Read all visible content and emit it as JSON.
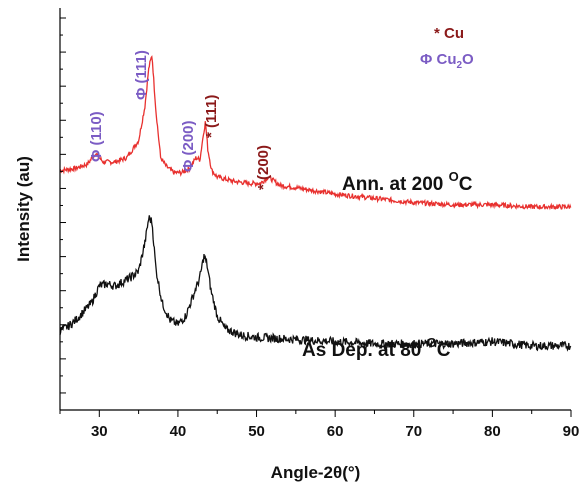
{
  "chart_data": {
    "type": "line",
    "xlabel": "Angle-2θ(°)",
    "ylabel": "Intensity (au)",
    "xlim": [
      25,
      90
    ],
    "x_ticks": [
      "30",
      "40",
      "50",
      "60",
      "70",
      "80",
      "90"
    ],
    "y_tick_labels": "none",
    "grid": false,
    "legend": {
      "position": "top-right",
      "entries": [
        {
          "symbol": "*",
          "label": "Cu",
          "color": "#8b1a1a"
        },
        {
          "symbol": "Φ",
          "label": "Cu2O",
          "color": "#7b5cc4"
        }
      ]
    },
    "series": [
      {
        "name": "Ann. at 200 OC",
        "color": "#e8312f",
        "x": [
          25,
          27,
          28.5,
          29.5,
          30.5,
          32,
          33.5,
          35,
          35.8,
          36.3,
          36.7,
          37.2,
          37.8,
          38.5,
          39.5,
          40.5,
          41.5,
          42.3,
          42.8,
          43.2,
          43.5,
          43.8,
          44.3,
          45,
          47,
          49,
          50.5,
          51.5,
          53,
          55,
          60,
          65,
          70,
          75,
          80,
          85,
          90
        ],
        "y": [
          0.32,
          0.33,
          0.35,
          0.4,
          0.36,
          0.36,
          0.38,
          0.46,
          0.62,
          0.8,
          0.86,
          0.6,
          0.38,
          0.34,
          0.31,
          0.31,
          0.33,
          0.38,
          0.37,
          0.48,
          0.55,
          0.42,
          0.32,
          0.29,
          0.27,
          0.26,
          0.26,
          0.29,
          0.25,
          0.24,
          0.21,
          0.19,
          0.17,
          0.16,
          0.16,
          0.15,
          0.15
        ],
        "label": "Ann. at 200",
        "label_sup": "O",
        "label_unit": "C",
        "peaks": [
          {
            "x": 29.5,
            "y": 0.4,
            "label": "Φ (110)",
            "phase": "Cu2O"
          },
          {
            "x": 36.5,
            "y": 0.86,
            "label": "Φ (111)",
            "phase": "Cu2O"
          },
          {
            "x": 42.3,
            "y": 0.38,
            "label": "Φ (200)",
            "phase": "Cu2O"
          },
          {
            "x": 43.5,
            "y": 0.55,
            "label": "* (111)",
            "phase": "Cu"
          },
          {
            "x": 50.5,
            "y": 0.27,
            "label": "* (200)",
            "phase": "Cu"
          }
        ]
      },
      {
        "name": "As Dep. at 80 OC",
        "color": "#111111",
        "x": [
          25,
          26,
          27,
          28,
          29,
          30,
          31,
          32,
          33,
          34,
          35,
          35.8,
          36.3,
          36.7,
          37.2,
          38,
          39,
          40,
          41,
          42,
          42.8,
          43.3,
          43.7,
          44.2,
          45,
          46,
          48,
          50,
          55,
          60,
          65,
          70,
          75,
          80,
          85,
          90
        ],
        "y": [
          -0.43,
          -0.41,
          -0.38,
          -0.34,
          -0.3,
          -0.22,
          -0.21,
          -0.22,
          -0.2,
          -0.18,
          -0.15,
          -0.02,
          0.1,
          0.08,
          -0.14,
          -0.3,
          -0.38,
          -0.4,
          -0.36,
          -0.26,
          -0.18,
          -0.08,
          -0.12,
          -0.24,
          -0.36,
          -0.42,
          -0.45,
          -0.46,
          -0.47,
          -0.48,
          -0.49,
          -0.49,
          -0.49,
          -0.48,
          -0.5,
          -0.5
        ],
        "label": "As Dep. at 80",
        "label_sup": "O",
        "label_unit": "C"
      }
    ]
  }
}
